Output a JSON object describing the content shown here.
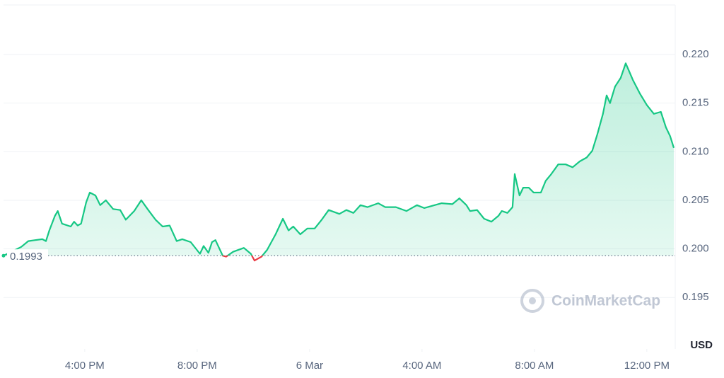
{
  "chart_data": {
    "type": "line",
    "color": "#16c784",
    "down_color": "#ea3943",
    "x": [
      13.11,
      13.74,
      13.99,
      14.24,
      14.49,
      14.62,
      14.74,
      14.94,
      15.04,
      15.19,
      15.5,
      15.62,
      15.75,
      15.87,
      16.05,
      16.18,
      16.38,
      16.55,
      16.75,
      17.01,
      17.26,
      17.46,
      17.76,
      18.01,
      18.26,
      18.52,
      18.77,
      19.02,
      19.27,
      19.47,
      19.77,
      20.1,
      20.23,
      20.4,
      20.53,
      20.65,
      20.91,
      21.03,
      21.28,
      21.66,
      21.91,
      22.04,
      22.29,
      22.49,
      22.79,
      23.05,
      23.25,
      23.42,
      23.67,
      23.92,
      24.18,
      24.43,
      24.68,
      25.06,
      25.31,
      25.56,
      25.81,
      26.06,
      26.44,
      26.69,
      27.07,
      27.45,
      27.82,
      28.08,
      28.45,
      28.7,
      29.08,
      29.33,
      29.58,
      29.71,
      29.96,
      30.21,
      30.47,
      30.72,
      30.84,
      31.04,
      31.22,
      31.3,
      31.47,
      31.6,
      31.8,
      31.97,
      32.23,
      32.4,
      32.6,
      32.85,
      33.11,
      33.36,
      33.61,
      33.86,
      34.06,
      34.24,
      34.44,
      34.57,
      34.69,
      34.87,
      35.07,
      35.25,
      35.5,
      35.75,
      36.0,
      36.25,
      36.5,
      36.68,
      36.83,
      36.96
    ],
    "values": [
      0.1993,
      0.2002,
      0.2008,
      0.2009,
      0.201,
      0.2008,
      0.2019,
      0.2034,
      0.2039,
      0.2026,
      0.2023,
      0.2028,
      0.2024,
      0.2026,
      0.2048,
      0.2058,
      0.2055,
      0.2045,
      0.205,
      0.2041,
      0.204,
      0.203,
      0.2039,
      0.205,
      0.204,
      0.203,
      0.2023,
      0.2024,
      0.2008,
      0.201,
      0.2007,
      0.1995,
      0.2003,
      0.1996,
      0.2007,
      0.2009,
      0.1993,
      0.1992,
      0.1997,
      0.2001,
      0.1995,
      0.1988,
      0.1992,
      0.1999,
      0.2015,
      0.2031,
      0.2019,
      0.2023,
      0.2015,
      0.2021,
      0.2021,
      0.203,
      0.204,
      0.2036,
      0.204,
      0.2037,
      0.2045,
      0.2043,
      0.2047,
      0.2043,
      0.2043,
      0.2039,
      0.2045,
      0.2042,
      0.2045,
      0.2047,
      0.2046,
      0.2052,
      0.2045,
      0.2039,
      0.204,
      0.2031,
      0.2028,
      0.2034,
      0.2039,
      0.2037,
      0.2043,
      0.2077,
      0.2055,
      0.2063,
      0.2063,
      0.2058,
      0.2058,
      0.207,
      0.2077,
      0.2087,
      0.2087,
      0.2084,
      0.209,
      0.2094,
      0.2101,
      0.2118,
      0.2139,
      0.2158,
      0.215,
      0.2167,
      0.2176,
      0.2191,
      0.2174,
      0.216,
      0.2148,
      0.2139,
      0.2141,
      0.2125,
      0.2116,
      0.2104
    ],
    "baseline": 0.1993,
    "xlim": [
      13.11,
      37.01
    ],
    "xticks": [
      {
        "value": 16,
        "label": "4:00 PM"
      },
      {
        "value": 20,
        "label": "8:00 PM"
      },
      {
        "value": 24,
        "label": "6 Mar"
      },
      {
        "value": 28,
        "label": "4:00 AM"
      },
      {
        "value": 32,
        "label": "8:00 AM"
      },
      {
        "value": 36,
        "label": "12:00 PM"
      }
    ],
    "ylim": [
      0.1897,
      0.2251
    ],
    "yticks": [
      0.195,
      {
        "value": 0.2,
        "label": "0.200"
      },
      0.205,
      {
        "value": 0.21,
        "label": "0.210"
      },
      0.215,
      {
        "value": 0.22,
        "label": "0.220"
      }
    ],
    "y_axis_label": "USD",
    "watermark": "CoinMarketCap",
    "grid": true
  }
}
